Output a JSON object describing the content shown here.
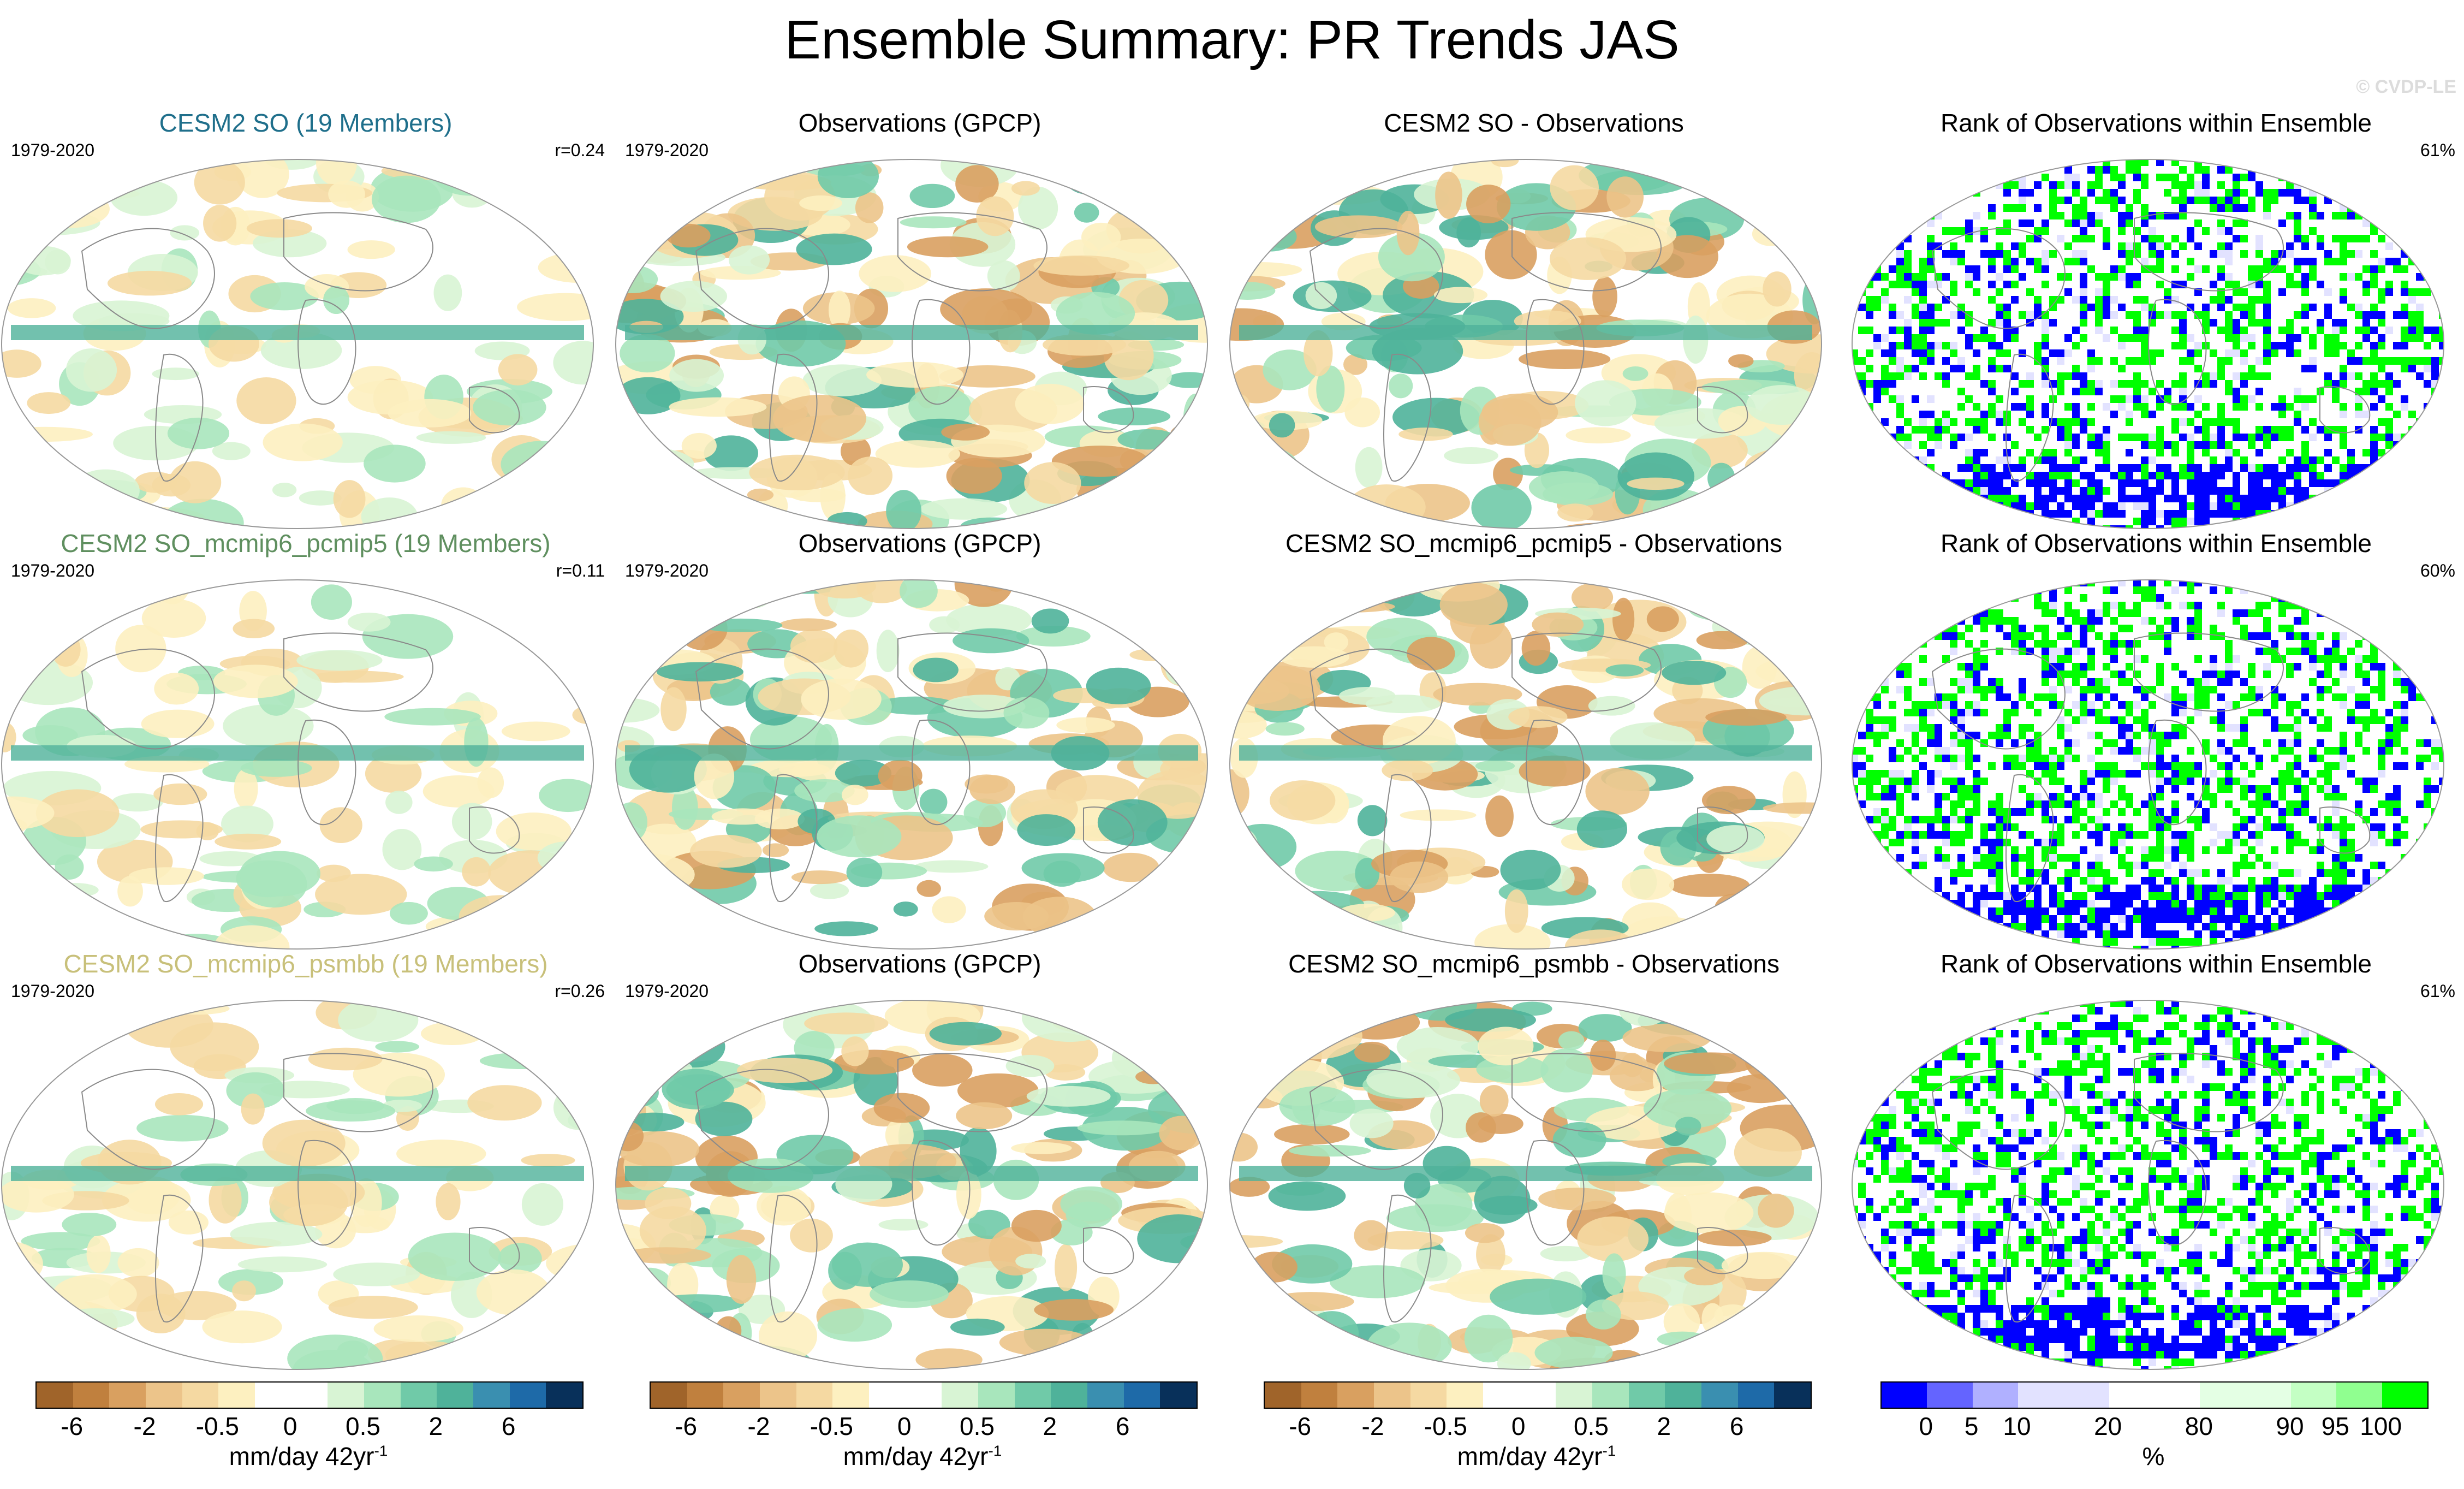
{
  "title": "Ensemble Summary: PR Trends JAS",
  "credit": "© CVDP-LE",
  "colors": {
    "model_titles": [
      "#1f6f8b",
      "#5f8f5f",
      "#c8c07a"
    ],
    "rank_low": "#0000ff",
    "rank_high": "#00ff00",
    "map_border": "#999999"
  },
  "chart_data": [
    {
      "type": "heatmap",
      "row": 1,
      "column": 1,
      "title": "CESM2 SO (19 Members)",
      "period": "1979-2020",
      "stat": "r=0.24",
      "variable": "precipitation trend",
      "units": "mm/day 42yr-1"
    },
    {
      "type": "heatmap",
      "row": 1,
      "column": 2,
      "title": "Observations (GPCP)",
      "period": "1979-2020",
      "stat": "",
      "variable": "precipitation trend",
      "units": "mm/day 42yr-1"
    },
    {
      "type": "heatmap",
      "row": 1,
      "column": 3,
      "title": "CESM2 SO - Observations",
      "period": "",
      "stat": "",
      "variable": "precipitation trend difference",
      "units": "mm/day 42yr-1"
    },
    {
      "type": "heatmap",
      "row": 1,
      "column": 4,
      "title": "Rank of Observations within Ensemble",
      "period": "",
      "stat": "61%",
      "variable": "rank",
      "units": "%"
    },
    {
      "type": "heatmap",
      "row": 2,
      "column": 1,
      "title": "CESM2 SO_mcmip6_pcmip5 (19 Members)",
      "period": "1979-2020",
      "stat": "r=0.11",
      "variable": "precipitation trend",
      "units": "mm/day 42yr-1"
    },
    {
      "type": "heatmap",
      "row": 2,
      "column": 2,
      "title": "Observations (GPCP)",
      "period": "1979-2020",
      "stat": "",
      "variable": "precipitation trend",
      "units": "mm/day 42yr-1"
    },
    {
      "type": "heatmap",
      "row": 2,
      "column": 3,
      "title": "CESM2 SO_mcmip6_pcmip5 - Observations",
      "period": "",
      "stat": "",
      "variable": "precipitation trend difference",
      "units": "mm/day 42yr-1"
    },
    {
      "type": "heatmap",
      "row": 2,
      "column": 4,
      "title": "Rank of Observations within Ensemble",
      "period": "",
      "stat": "60%",
      "variable": "rank",
      "units": "%"
    },
    {
      "type": "heatmap",
      "row": 3,
      "column": 1,
      "title": "CESM2 SO_mcmip6_psmbb (19 Members)",
      "period": "1979-2020",
      "stat": "r=0.26",
      "variable": "precipitation trend",
      "units": "mm/day 42yr-1"
    },
    {
      "type": "heatmap",
      "row": 3,
      "column": 2,
      "title": "Observations (GPCP)",
      "period": "1979-2020",
      "stat": "",
      "variable": "precipitation trend",
      "units": "mm/day 42yr-1"
    },
    {
      "type": "heatmap",
      "row": 3,
      "column": 3,
      "title": "CESM2 SO_mcmip6_psmbb - Observations",
      "period": "",
      "stat": "",
      "variable": "precipitation trend difference",
      "units": "mm/day 42yr-1"
    },
    {
      "type": "heatmap",
      "row": 3,
      "column": 4,
      "title": "Rank of Observations within Ensemble",
      "period": "",
      "stat": "61%",
      "variable": "rank",
      "units": "%"
    }
  ],
  "colorbars": {
    "trend": {
      "colors": [
        "#a0642a",
        "#c0803e",
        "#d9a060",
        "#ecc48a",
        "#f5d9a2",
        "#fdf0c0",
        "#ffffff",
        "#ffffff",
        "#d8f4d4",
        "#a8e6bc",
        "#70caa8",
        "#4fb29a",
        "#3a8fb0",
        "#1e6aa8",
        "#08305a"
      ],
      "ticks": [
        "-6",
        "-2",
        "-0.5",
        "0",
        "0.5",
        "2",
        "6"
      ],
      "tick_boundaries": [
        1,
        3,
        5,
        7,
        9,
        11,
        13
      ],
      "units_main": "mm/day 42yr",
      "units_sup": "-1"
    },
    "rank": {
      "colors": [
        "#0000ff",
        "#6464ff",
        "#b0b0ff",
        "#e2e2ff",
        "#e2e2ff",
        "#ffffff",
        "#ffffff",
        "#e4ffe4",
        "#e4ffe4",
        "#c4ffc4",
        "#90ff90",
        "#00ff00"
      ],
      "ticks": [
        "0",
        "5",
        "10",
        "20",
        "80",
        "90",
        "95",
        "100"
      ],
      "tick_boundaries": [
        1,
        2,
        3,
        5,
        7,
        9,
        10,
        11
      ],
      "units_main": "%",
      "units_sup": ""
    }
  }
}
